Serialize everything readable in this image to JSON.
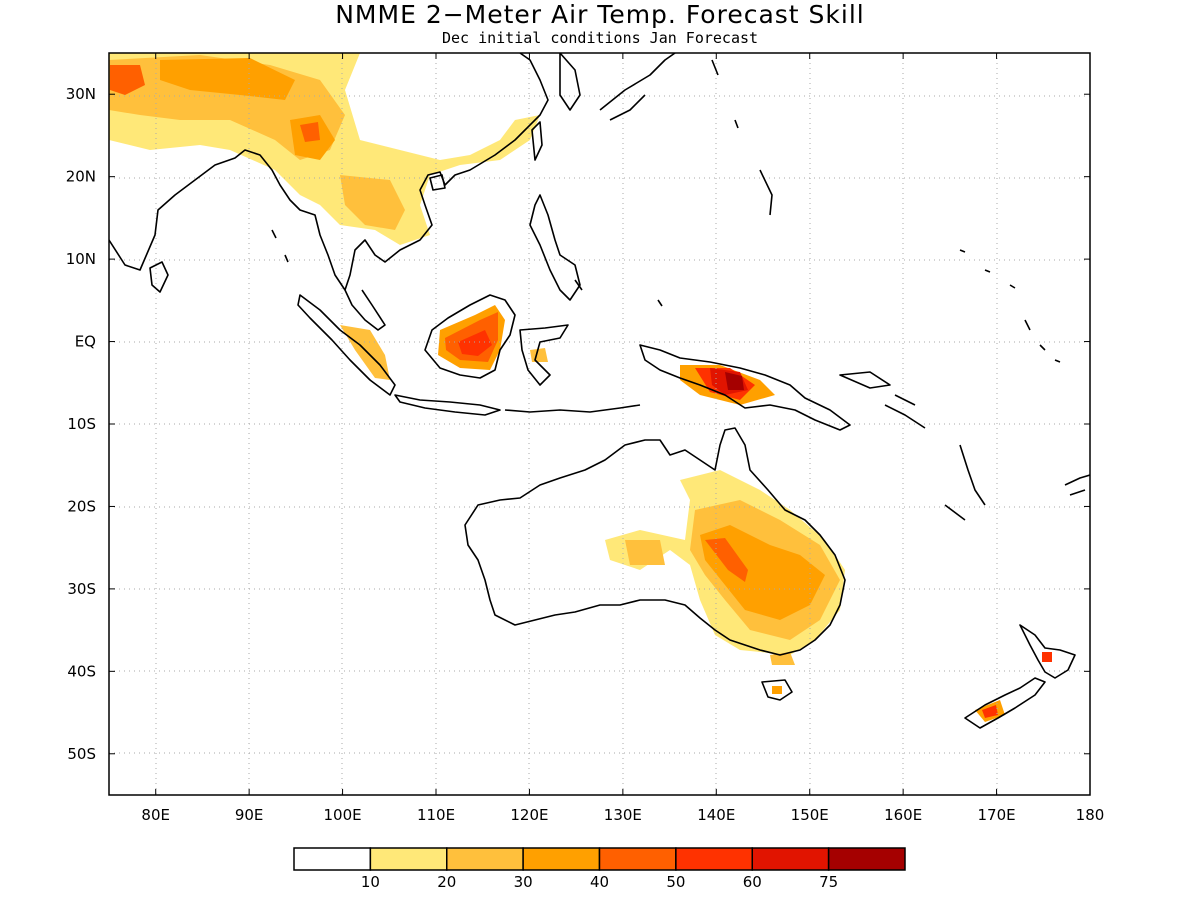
{
  "title": "NMME 2−Meter Air Temp. Forecast Skill",
  "subtitle": "Dec initial conditions  Jan Forecast",
  "lon_labels": [
    "80E",
    "90E",
    "100E",
    "110E",
    "120E",
    "130E",
    "140E",
    "150E",
    "160E",
    "170E",
    "180"
  ],
  "lat_labels": [
    "30N",
    "20N",
    "10N",
    "EQ",
    "10S",
    "20S",
    "30S",
    "40S",
    "50S"
  ],
  "colorbar": {
    "labels": [
      "10",
      "20",
      "30",
      "40",
      "50",
      "60",
      "75"
    ],
    "colors": [
      "#ffffff",
      "#ffe878",
      "#ffc03c",
      "#ffa000",
      "#ff6000",
      "#ff3200",
      "#e11400",
      "#a50000"
    ]
  },
  "map": {
    "lon_range": [
      75,
      180
    ],
    "lat_range": [
      -55,
      35
    ],
    "lon_ticks": [
      80,
      90,
      100,
      110,
      120,
      130,
      140,
      150,
      160,
      170,
      180
    ],
    "lat_ticks": [
      30,
      20,
      10,
      0,
      -10,
      -20,
      -30,
      -40,
      -50
    ],
    "grid": true
  }
}
